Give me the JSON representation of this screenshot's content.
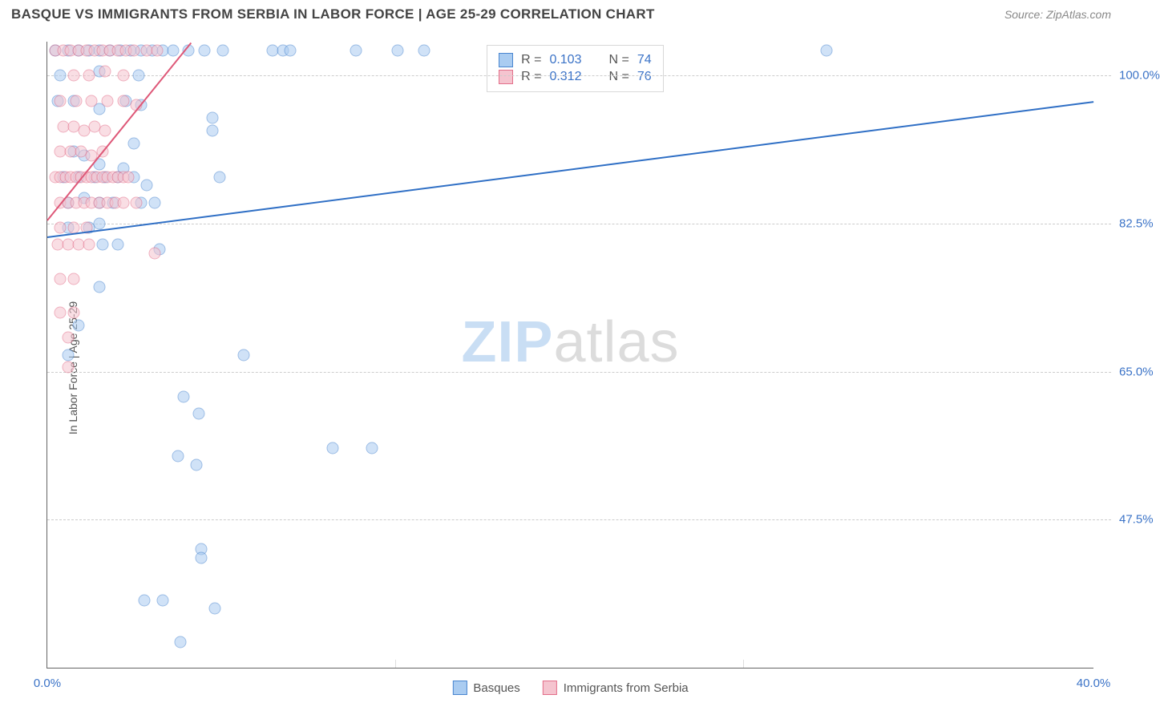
{
  "title": "BASQUE VS IMMIGRANTS FROM SERBIA IN LABOR FORCE | AGE 25-29 CORRELATION CHART",
  "source": "Source: ZipAtlas.com",
  "ylabel": "In Labor Force | Age 25-29",
  "watermark": {
    "zip": "ZIP",
    "atlas": "atlas"
  },
  "chart": {
    "type": "scatter-correlation",
    "background_color": "#ffffff",
    "grid_color": "#cccccc",
    "axis_color": "#666666",
    "xlim": [
      0,
      40
    ],
    "ylim": [
      30,
      104
    ],
    "x_ticks": [
      {
        "v": 0,
        "label": "0.0%"
      },
      {
        "v": 40,
        "label": "40.0%"
      }
    ],
    "x_minor_ticks": [
      13.3,
      26.6
    ],
    "y_ticks": [
      {
        "v": 100,
        "label": "100.0%"
      },
      {
        "v": 82.5,
        "label": "82.5%"
      },
      {
        "v": 65,
        "label": "65.0%"
      },
      {
        "v": 47.5,
        "label": "47.5%"
      }
    ],
    "tick_color": "#3b73c7",
    "tick_fontsize": 15,
    "marker_radius": 7.5,
    "marker_opacity": 0.55,
    "series": [
      {
        "key": "basques",
        "label": "Basques",
        "color_fill": "#aaccf1",
        "color_stroke": "#4a86d0",
        "R": "0.103",
        "N": "74",
        "trend": {
          "x1": 0,
          "y1": 81,
          "x2": 40,
          "y2": 97,
          "color": "#2f6fc5",
          "width": 2
        },
        "points": [
          [
            0.3,
            103
          ],
          [
            0.8,
            103
          ],
          [
            1.2,
            103
          ],
          [
            1.6,
            103
          ],
          [
            2.0,
            103
          ],
          [
            2.4,
            103
          ],
          [
            2.8,
            103
          ],
          [
            3.2,
            103
          ],
          [
            3.6,
            103
          ],
          [
            4.0,
            103
          ],
          [
            4.4,
            103
          ],
          [
            4.8,
            103
          ],
          [
            5.4,
            103
          ],
          [
            6.0,
            103
          ],
          [
            6.7,
            103
          ],
          [
            8.6,
            103
          ],
          [
            9.0,
            103
          ],
          [
            9.3,
            103
          ],
          [
            11.8,
            103
          ],
          [
            13.4,
            103
          ],
          [
            14.4,
            103
          ],
          [
            29.8,
            103
          ],
          [
            0.5,
            100
          ],
          [
            2.0,
            100.5
          ],
          [
            3.5,
            100
          ],
          [
            0.4,
            97
          ],
          [
            1.0,
            97
          ],
          [
            2.0,
            96
          ],
          [
            3.0,
            97
          ],
          [
            3.6,
            96.5
          ],
          [
            6.3,
            95
          ],
          [
            6.3,
            93.5
          ],
          [
            1.0,
            91
          ],
          [
            1.4,
            90.5
          ],
          [
            2.0,
            89.5
          ],
          [
            2.9,
            89
          ],
          [
            3.3,
            92
          ],
          [
            0.6,
            88
          ],
          [
            1.2,
            88
          ],
          [
            1.8,
            88
          ],
          [
            2.2,
            88
          ],
          [
            2.7,
            88
          ],
          [
            3.3,
            88
          ],
          [
            3.8,
            87
          ],
          [
            6.6,
            88
          ],
          [
            0.8,
            85
          ],
          [
            1.4,
            85.5
          ],
          [
            2.0,
            85
          ],
          [
            2.5,
            85
          ],
          [
            3.6,
            85
          ],
          [
            4.1,
            85
          ],
          [
            0.8,
            82
          ],
          [
            1.6,
            82
          ],
          [
            2.0,
            82.5
          ],
          [
            2.1,
            80
          ],
          [
            2.7,
            80
          ],
          [
            4.3,
            79.5
          ],
          [
            2.0,
            75
          ],
          [
            1.2,
            70.5
          ],
          [
            0.8,
            67
          ],
          [
            7.5,
            67
          ],
          [
            5.2,
            62
          ],
          [
            5.8,
            60
          ],
          [
            10.9,
            56
          ],
          [
            12.4,
            56
          ],
          [
            5.0,
            55
          ],
          [
            5.7,
            54
          ],
          [
            5.9,
            44
          ],
          [
            5.9,
            43
          ],
          [
            3.7,
            38
          ],
          [
            4.4,
            38
          ],
          [
            6.4,
            37
          ],
          [
            5.1,
            33
          ]
        ]
      },
      {
        "key": "serbia",
        "label": "Immigrants from Serbia",
        "color_fill": "#f5c4cf",
        "color_stroke": "#e36f8a",
        "R": "0.312",
        "N": "76",
        "trend": {
          "x1": 0,
          "y1": 83,
          "x2": 5.5,
          "y2": 104,
          "color": "#de5878",
          "width": 2
        },
        "points": [
          [
            0.3,
            103
          ],
          [
            0.6,
            103
          ],
          [
            0.9,
            103
          ],
          [
            1.2,
            103
          ],
          [
            1.5,
            103
          ],
          [
            1.8,
            103
          ],
          [
            2.1,
            103
          ],
          [
            2.4,
            103
          ],
          [
            2.7,
            103
          ],
          [
            3.0,
            103
          ],
          [
            3.3,
            103
          ],
          [
            3.8,
            103
          ],
          [
            4.2,
            103
          ],
          [
            1.0,
            100
          ],
          [
            1.6,
            100
          ],
          [
            2.2,
            100.5
          ],
          [
            2.9,
            100
          ],
          [
            0.5,
            97
          ],
          [
            1.1,
            97
          ],
          [
            1.7,
            97
          ],
          [
            2.3,
            97
          ],
          [
            2.9,
            97
          ],
          [
            3.4,
            96.5
          ],
          [
            0.6,
            94
          ],
          [
            1.0,
            94
          ],
          [
            1.4,
            93.5
          ],
          [
            1.8,
            94
          ],
          [
            2.2,
            93.5
          ],
          [
            0.5,
            91
          ],
          [
            0.9,
            91
          ],
          [
            1.3,
            91
          ],
          [
            1.7,
            90.5
          ],
          [
            2.1,
            91
          ],
          [
            0.3,
            88
          ],
          [
            0.5,
            88
          ],
          [
            0.7,
            88
          ],
          [
            0.9,
            88
          ],
          [
            1.1,
            88
          ],
          [
            1.3,
            88
          ],
          [
            1.5,
            88
          ],
          [
            1.7,
            88
          ],
          [
            1.9,
            88
          ],
          [
            2.1,
            88
          ],
          [
            2.3,
            88
          ],
          [
            2.5,
            88
          ],
          [
            2.7,
            88
          ],
          [
            2.9,
            88
          ],
          [
            3.1,
            88
          ],
          [
            0.5,
            85
          ],
          [
            0.8,
            85
          ],
          [
            1.1,
            85
          ],
          [
            1.4,
            85
          ],
          [
            1.7,
            85
          ],
          [
            2.0,
            85
          ],
          [
            2.3,
            85
          ],
          [
            2.6,
            85
          ],
          [
            2.9,
            85
          ],
          [
            3.4,
            85
          ],
          [
            0.5,
            82
          ],
          [
            1.0,
            82
          ],
          [
            1.5,
            82
          ],
          [
            0.4,
            80
          ],
          [
            0.8,
            80
          ],
          [
            1.2,
            80
          ],
          [
            1.6,
            80
          ],
          [
            4.1,
            79
          ],
          [
            0.5,
            76
          ],
          [
            1.0,
            76
          ],
          [
            0.5,
            72
          ],
          [
            1.0,
            72
          ],
          [
            0.8,
            69
          ],
          [
            0.8,
            65.5
          ]
        ]
      }
    ],
    "legend_top": {
      "r_label": "R =",
      "n_label": "N =",
      "text_color": "#555555",
      "value_color": "#3b73c7"
    },
    "legend_bottom_text_color": "#555555"
  }
}
